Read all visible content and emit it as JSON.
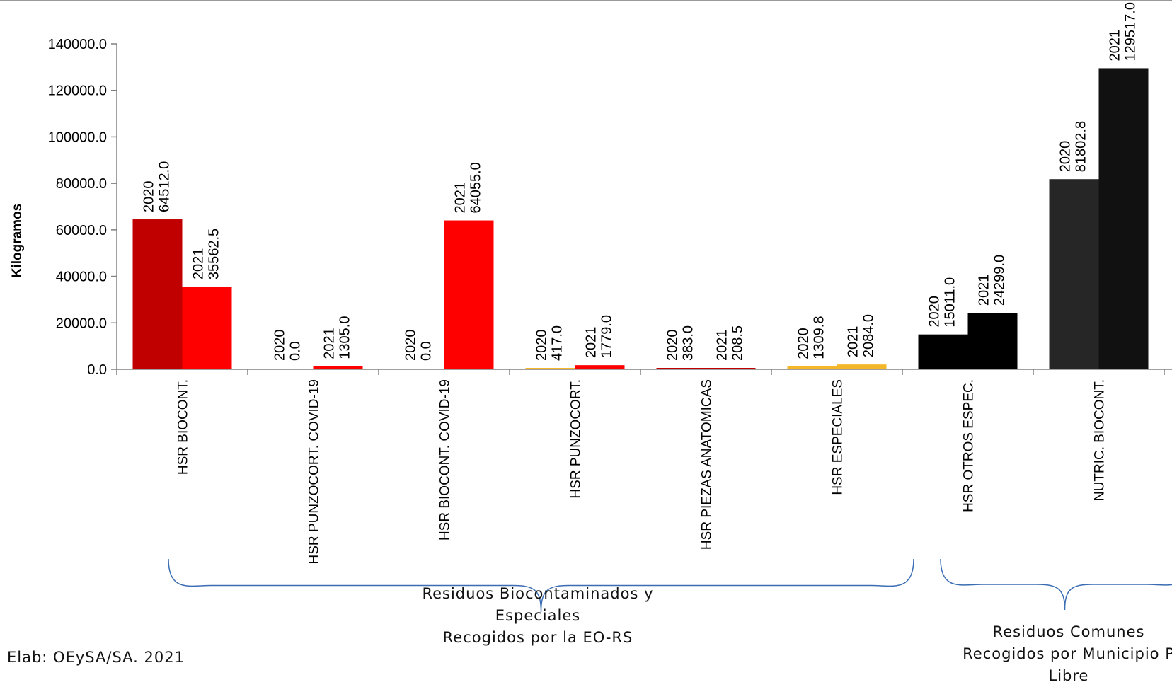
{
  "chart_data": {
    "type": "bar",
    "ylabel": "Kilogramos",
    "ylim": [
      0,
      140000
    ],
    "y_ticks": [
      "0.0",
      "20000.0",
      "40000.0",
      "60000.0",
      "80000.0",
      "100000.0",
      "120000.0",
      "140000.0"
    ],
    "categories": [
      "HSR BIOCONT.",
      "HSR PUNZOCORT. COVID-19",
      "HSR BIOCONT. COVID-19",
      "HSR PUNZOCORT.",
      "HSR PIEZAS ANATOMICAS",
      "HSR ESPECIALES",
      "HSR OTROS ESPEC.",
      "NUTRIC. BIOCONT."
    ],
    "series": [
      {
        "name": "2020",
        "values": [
          64512.0,
          0.0,
          0.0,
          417.0,
          383.0,
          1309.8,
          15011.0,
          81802.8
        ],
        "labels": [
          "64512.0",
          "0.0",
          "0.0",
          "417.0",
          "383.0",
          "1309.8",
          "15011.0",
          "81802.8"
        ]
      },
      {
        "name": "2021",
        "values": [
          35562.5,
          1305.0,
          64055.0,
          1779.0,
          208.5,
          2084.0,
          24299.0,
          129517.0
        ],
        "labels": [
          "35562.5",
          "1305.0",
          "64055.0",
          "1779.0",
          "208.5",
          "2084.0",
          "24299.0",
          "129517.0"
        ]
      }
    ],
    "colors_2020": [
      "#c00000",
      "#ff0000",
      "#ff0000",
      "#f4b72a",
      "#c00000",
      "#f4b72a",
      "#000000",
      "#262626"
    ],
    "colors_2021": [
      "#ff0000",
      "#ff0000",
      "#ff0000",
      "#ff0000",
      "#c00000",
      "#f4b72a",
      "#000000",
      "#111111"
    ],
    "grid": false
  },
  "groups": [
    {
      "label": "Residuos Biocontaminados y\nEspeciales\nRecogidos por la EO-RS"
    },
    {
      "label": "Residuos Comunes\nRecogidos por  Municipio P\nLibre"
    }
  ],
  "source_note": "Elab: OEySA/SA.  2021"
}
